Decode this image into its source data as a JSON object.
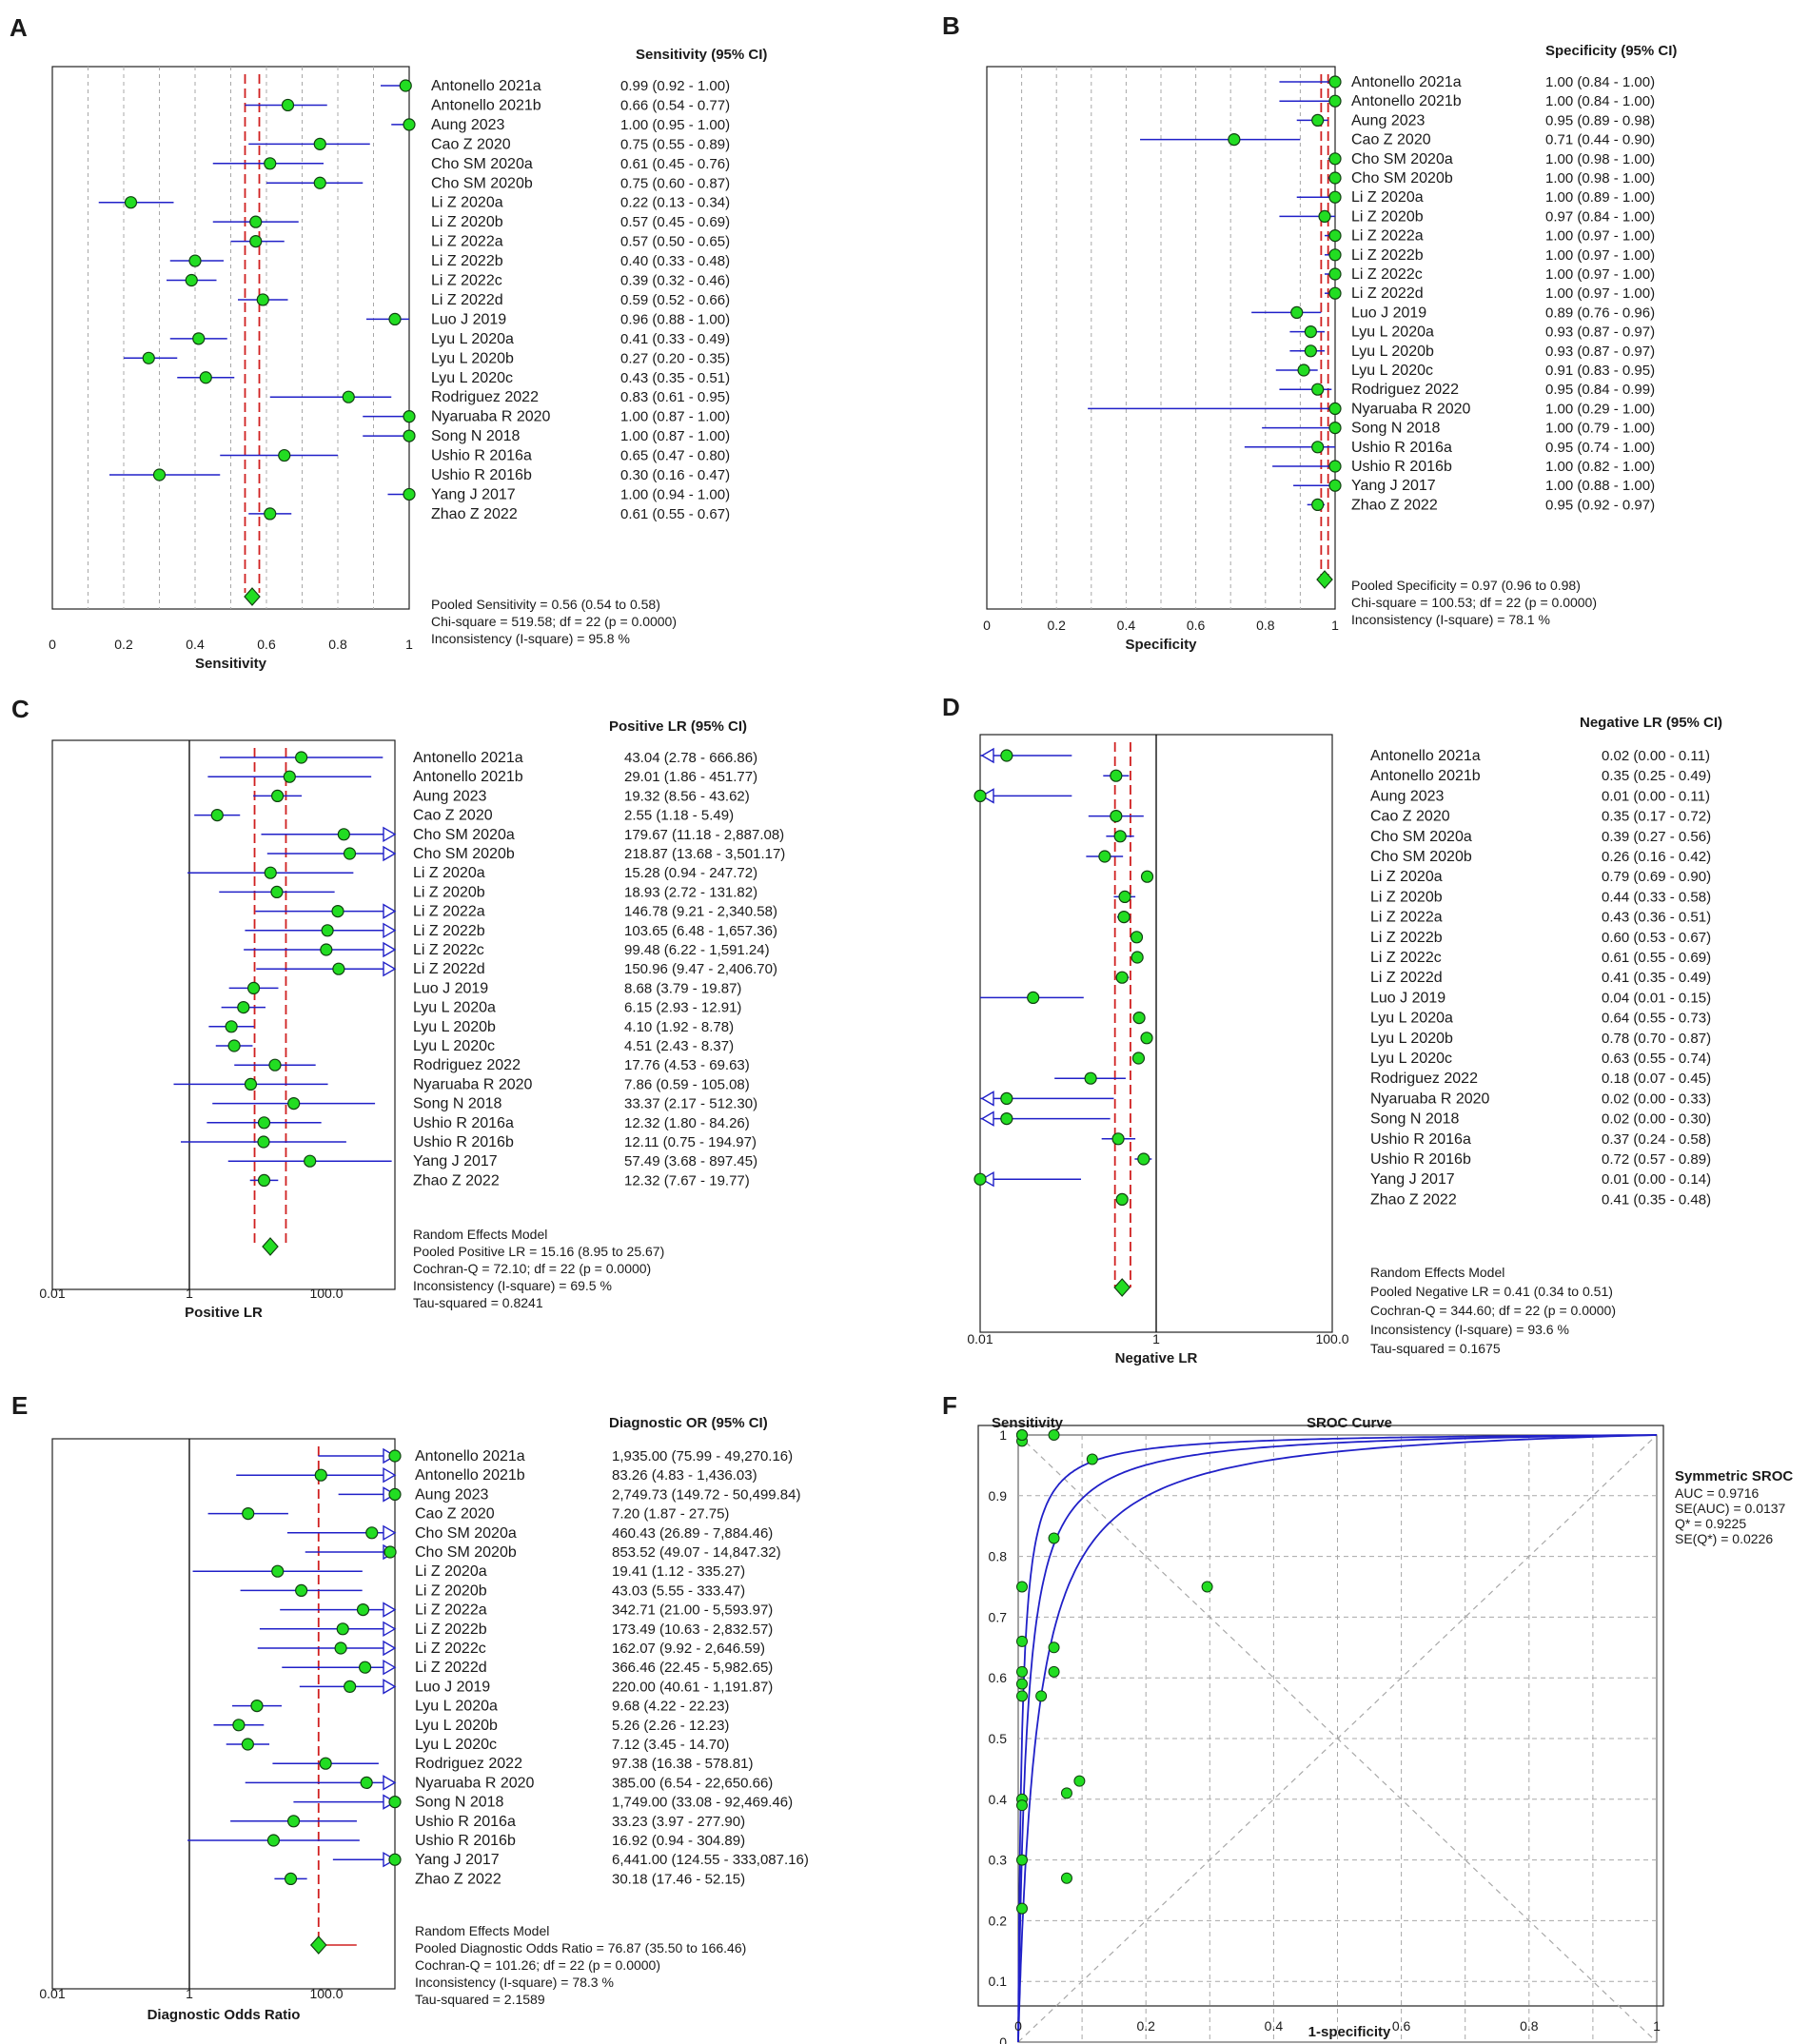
{
  "studies": [
    "Antonello 2021a",
    "Antonello 2021b",
    "Aung 2023",
    "Cao Z 2020",
    "Cho SM 2020a",
    "Cho SM 2020b",
    "Li Z 2020a",
    "Li Z 2020b",
    "Li Z 2022a",
    "Li Z 2022b",
    "Li Z 2022c",
    "Li Z 2022d",
    "Luo J 2019",
    "Lyu L 2020a",
    "Lyu L 2020b",
    "Lyu L 2020c",
    "Rodriguez 2022",
    "Nyaruaba R 2020",
    "Song N 2018",
    "Ushio R 2016a",
    "Ushio R 2016b",
    "Yang J 2017",
    "Zhao Z 2022"
  ],
  "chart_data": [
    {
      "panel": "A",
      "type": "forest",
      "header": "Sensitivity (95% CI)",
      "xlabel": "Sensitivity",
      "ticks": [
        "0",
        "0.2",
        "0.4",
        "0.6",
        "0.8",
        "1"
      ],
      "values": [
        0.99,
        0.66,
        1.0,
        0.75,
        0.61,
        0.75,
        0.22,
        0.57,
        0.57,
        0.4,
        0.39,
        0.59,
        0.96,
        0.41,
        0.27,
        0.43,
        0.83,
        1.0,
        1.0,
        0.65,
        0.3,
        1.0,
        0.61
      ],
      "lower": [
        0.92,
        0.54,
        0.95,
        0.55,
        0.45,
        0.6,
        0.13,
        0.45,
        0.5,
        0.33,
        0.32,
        0.52,
        0.88,
        0.33,
        0.2,
        0.35,
        0.61,
        0.87,
        0.87,
        0.47,
        0.16,
        0.94,
        0.55
      ],
      "upper": [
        1.0,
        0.77,
        1.0,
        0.89,
        0.76,
        0.87,
        0.34,
        0.69,
        0.65,
        0.48,
        0.46,
        0.66,
        1.0,
        0.49,
        0.35,
        0.51,
        0.95,
        1.0,
        1.0,
        0.8,
        0.47,
        1.0,
        0.67
      ],
      "labels": [
        "0.99  (0.92 - 1.00)",
        "0.66  (0.54 - 0.77)",
        "1.00  (0.95 - 1.00)",
        "0.75  (0.55 - 0.89)",
        "0.61  (0.45 - 0.76)",
        "0.75  (0.60 - 0.87)",
        "0.22  (0.13 - 0.34)",
        "0.57  (0.45 - 0.69)",
        "0.57  (0.50 - 0.65)",
        "0.40  (0.33 - 0.48)",
        "0.39  (0.32 - 0.46)",
        "0.59  (0.52 - 0.66)",
        "0.96  (0.88 - 1.00)",
        "0.41  (0.33 - 0.49)",
        "0.27  (0.20 - 0.35)",
        "0.43  (0.35 - 0.51)",
        "0.83  (0.61 - 0.95)",
        "1.00  (0.87 - 1.00)",
        "1.00  (0.87 - 1.00)",
        "0.65  (0.47 - 0.80)",
        "0.30  (0.16 - 0.47)",
        "1.00  (0.94 - 1.00)",
        "0.61  (0.55 - 0.67)"
      ],
      "pooled": {
        "value": 0.56,
        "lower": 0.54,
        "upper": 0.58
      },
      "summary": [
        "Pooled Sensitivity = 0.56 (0.54 to 0.58)",
        "Chi-square = 519.58; df = 22 (p = 0.0000)",
        "Inconsistency (I-square) = 95.8 %"
      ]
    },
    {
      "panel": "B",
      "type": "forest",
      "header": "Specificity (95% CI)",
      "xlabel": "Specificity",
      "ticks": [
        "0",
        "0.2",
        "0.4",
        "0.6",
        "0.8",
        "1"
      ],
      "values": [
        1.0,
        1.0,
        0.95,
        0.71,
        1.0,
        1.0,
        1.0,
        0.97,
        1.0,
        1.0,
        1.0,
        1.0,
        0.89,
        0.93,
        0.93,
        0.91,
        0.95,
        1.0,
        1.0,
        0.95,
        1.0,
        1.0,
        0.95
      ],
      "lower": [
        0.84,
        0.84,
        0.89,
        0.44,
        0.98,
        0.98,
        0.89,
        0.84,
        0.97,
        0.97,
        0.97,
        0.97,
        0.76,
        0.87,
        0.87,
        0.83,
        0.84,
        0.29,
        0.79,
        0.74,
        0.82,
        0.88,
        0.92
      ],
      "upper": [
        1.0,
        1.0,
        0.98,
        0.9,
        1.0,
        1.0,
        1.0,
        1.0,
        1.0,
        1.0,
        1.0,
        1.0,
        0.96,
        0.97,
        0.97,
        0.95,
        0.99,
        1.0,
        1.0,
        1.0,
        1.0,
        1.0,
        0.97
      ],
      "labels": [
        "1.00  (0.84 - 1.00)",
        "1.00  (0.84 - 1.00)",
        "0.95  (0.89 - 0.98)",
        "0.71  (0.44 - 0.90)",
        "1.00  (0.98 - 1.00)",
        "1.00  (0.98 - 1.00)",
        "1.00  (0.89 - 1.00)",
        "0.97  (0.84 - 1.00)",
        "1.00  (0.97 - 1.00)",
        "1.00  (0.97 - 1.00)",
        "1.00  (0.97 - 1.00)",
        "1.00  (0.97 - 1.00)",
        "0.89  (0.76 - 0.96)",
        "0.93  (0.87 - 0.97)",
        "0.93  (0.87 - 0.97)",
        "0.91  (0.83 - 0.95)",
        "0.95  (0.84 - 0.99)",
        "1.00  (0.29 - 1.00)",
        "1.00  (0.79 - 1.00)",
        "0.95  (0.74 - 1.00)",
        "1.00  (0.82 - 1.00)",
        "1.00  (0.88 - 1.00)",
        "0.95  (0.92 - 0.97)"
      ],
      "pooled": {
        "value": 0.97,
        "lower": 0.96,
        "upper": 0.98
      },
      "summary": [
        "Pooled Specificity = 0.97 (0.96 to 0.98)",
        "Chi-square = 100.53; df = 22 (p = 0.0000)",
        "Inconsistency (I-square) = 78.1 %"
      ]
    },
    {
      "panel": "C",
      "type": "forest",
      "header": "Positive LR (95% CI)",
      "xlabel": "Positive LR",
      "ticks": [
        "0.01",
        "1",
        "100.0"
      ],
      "values": [
        43.04,
        29.01,
        19.32,
        2.55,
        179.67,
        218.87,
        15.28,
        18.93,
        146.78,
        103.65,
        99.48,
        150.96,
        8.68,
        6.15,
        4.1,
        4.51,
        17.76,
        7.86,
        33.37,
        12.32,
        12.11,
        57.49,
        12.32
      ],
      "lower": [
        2.78,
        1.86,
        8.56,
        1.18,
        11.18,
        13.68,
        0.94,
        2.72,
        9.21,
        6.48,
        6.22,
        9.47,
        3.79,
        2.93,
        1.92,
        2.43,
        4.53,
        0.59,
        2.17,
        1.8,
        0.75,
        3.68,
        7.67
      ],
      "upper": [
        666.86,
        451.77,
        43.62,
        5.49,
        2887.08,
        3501.17,
        247.72,
        131.82,
        2340.58,
        1657.36,
        1591.24,
        2406.7,
        19.87,
        12.91,
        8.78,
        8.37,
        69.63,
        105.08,
        512.3,
        84.26,
        194.97,
        897.45,
        19.77
      ],
      "labels": [
        "43.04  (2.78 - 666.86)",
        "29.01  (1.86 - 451.77)",
        "19.32  (8.56 - 43.62)",
        "2.55  (1.18 - 5.49)",
        "179.67  (11.18 - 2,887.08)",
        "218.87  (13.68 - 3,501.17)",
        "15.28  (0.94 - 247.72)",
        "18.93  (2.72 - 131.82)",
        "146.78  (9.21 - 2,340.58)",
        "103.65  (6.48 - 1,657.36)",
        "99.48  (6.22 - 1,591.24)",
        "150.96  (9.47 - 2,406.70)",
        "8.68  (3.79 - 19.87)",
        "6.15  (2.93 - 12.91)",
        "4.10  (1.92 - 8.78)",
        "4.51  (2.43 - 8.37)",
        "17.76  (4.53 - 69.63)",
        "7.86  (0.59 - 105.08)",
        "33.37  (2.17 - 512.30)",
        "12.32  (1.80 - 84.26)",
        "12.11  (0.75 - 194.97)",
        "57.49  (3.68 - 897.45)",
        "12.32  (7.67 - 19.77)"
      ],
      "pooled": {
        "value": 15.16,
        "lower": 8.95,
        "upper": 25.67
      },
      "summary": [
        "Random Effects Model",
        "Pooled Positive LR = 15.16 (8.95 to 25.67)",
        "Cochran-Q = 72.10; df =  22 (p = 0.0000)",
        "Inconsistency (I-square) = 69.5 %",
        "Tau-squared = 0.8241"
      ]
    },
    {
      "panel": "D",
      "type": "forest",
      "header": "Negative LR (95% CI)",
      "xlabel": "Negative LR",
      "ticks": [
        "0.01",
        "1",
        "100.0"
      ],
      "values": [
        0.02,
        0.35,
        0.01,
        0.35,
        0.39,
        0.26,
        0.79,
        0.44,
        0.43,
        0.6,
        0.61,
        0.41,
        0.04,
        0.64,
        0.78,
        0.63,
        0.18,
        0.02,
        0.02,
        0.37,
        0.72,
        0.01,
        0.41
      ],
      "lower": [
        0.0,
        0.25,
        0.0,
        0.17,
        0.27,
        0.16,
        0.69,
        0.33,
        0.36,
        0.53,
        0.55,
        0.35,
        0.01,
        0.55,
        0.7,
        0.55,
        0.07,
        0.0,
        0.0,
        0.24,
        0.57,
        0.0,
        0.35
      ],
      "upper": [
        0.11,
        0.49,
        0.11,
        0.72,
        0.56,
        0.42,
        0.9,
        0.58,
        0.51,
        0.67,
        0.69,
        0.49,
        0.15,
        0.73,
        0.87,
        0.74,
        0.45,
        0.33,
        0.3,
        0.58,
        0.89,
        0.14,
        0.48
      ],
      "labels": [
        "0.02  (0.00 - 0.11)",
        "0.35  (0.25 - 0.49)",
        "0.01  (0.00 - 0.11)",
        "0.35  (0.17 - 0.72)",
        "0.39  (0.27 - 0.56)",
        "0.26  (0.16 - 0.42)",
        "0.79  (0.69 - 0.90)",
        "0.44  (0.33 - 0.58)",
        "0.43  (0.36 - 0.51)",
        "0.60  (0.53 - 0.67)",
        "0.61  (0.55 - 0.69)",
        "0.41  (0.35 - 0.49)",
        "0.04  (0.01 - 0.15)",
        "0.64  (0.55 - 0.73)",
        "0.78  (0.70 - 0.87)",
        "0.63  (0.55 - 0.74)",
        "0.18  (0.07 - 0.45)",
        "0.02  (0.00 - 0.33)",
        "0.02  (0.00 - 0.30)",
        "0.37  (0.24 - 0.58)",
        "0.72  (0.57 - 0.89)",
        "0.01  (0.00 - 0.14)",
        "0.41  (0.35 - 0.48)"
      ],
      "pooled": {
        "value": 0.41,
        "lower": 0.34,
        "upper": 0.51
      },
      "summary": [
        "Random Effects Model",
        "Pooled Negative LR = 0.41 (0.34 to 0.51)",
        "Cochran-Q = 344.60; df =  22 (p = 0.0000)",
        "Inconsistency (I-square) = 93.6 %",
        "Tau-squared = 0.1675"
      ]
    },
    {
      "panel": "E",
      "type": "forest",
      "header": "Diagnostic OR (95% CI)",
      "xlabel": "Diagnostic Odds Ratio",
      "ticks": [
        "0.01",
        "1",
        "100.0"
      ],
      "values": [
        1935.0,
        83.26,
        2749.73,
        7.2,
        460.43,
        853.52,
        19.41,
        43.03,
        342.71,
        173.49,
        162.07,
        366.46,
        220.0,
        9.68,
        5.26,
        7.12,
        97.38,
        385.0,
        1749.0,
        33.23,
        16.92,
        6441.0,
        30.18
      ],
      "lower": [
        75.99,
        4.83,
        149.72,
        1.87,
        26.89,
        49.07,
        1.12,
        5.55,
        21.0,
        10.63,
        9.92,
        22.45,
        40.61,
        4.22,
        2.26,
        3.45,
        16.38,
        6.54,
        33.08,
        3.97,
        0.94,
        124.55,
        17.46
      ],
      "upper": [
        49270.16,
        1436.03,
        50499.84,
        27.75,
        7884.46,
        14847.32,
        335.27,
        333.47,
        5593.97,
        2832.57,
        2646.59,
        5982.65,
        1191.87,
        22.23,
        12.23,
        14.7,
        578.81,
        22650.66,
        92469.46,
        277.9,
        304.89,
        333087.16,
        52.15
      ],
      "labels": [
        "1,935.00  (75.99 - 49,270.16)",
        "83.26  (4.83 - 1,436.03)",
        "2,749.73  (149.72 - 50,499.84)",
        "7.20  (1.87 - 27.75)",
        "460.43  (26.89 - 7,884.46)",
        "853.52  (49.07 - 14,847.32)",
        "19.41  (1.12 - 335.27)",
        "43.03  (5.55 - 333.47)",
        "342.71  (21.00 - 5,593.97)",
        "173.49  (10.63 - 2,832.57)",
        "162.07  (9.92 - 2,646.59)",
        "366.46  (22.45 - 5,982.65)",
        "220.00  (40.61 - 1,191.87)",
        "9.68  (4.22 - 22.23)",
        "5.26  (2.26 - 12.23)",
        "7.12  (3.45 - 14.70)",
        "97.38  (16.38 - 578.81)",
        "385.00  (6.54 - 22,650.66)",
        "1,749.00  (33.08 - 92,469.46)",
        "33.23  (3.97 - 277.90)",
        "16.92  (0.94 - 304.89)",
        "6,441.00  (124.55 - 333,087.16)",
        "30.18  (17.46 - 52.15)"
      ],
      "pooled": {
        "value": 76.87,
        "lower": 35.5,
        "upper": 166.46
      },
      "summary": [
        "Random Effects Model",
        "Pooled Diagnostic Odds Ratio = 76.87 (35.50 to 166.46)",
        "Cochran-Q = 101.26; df =  22 (p = 0.0000)",
        "Inconsistency (I-square) = 78.3 %",
        "Tau-squared = 2.1589"
      ]
    },
    {
      "panel": "F",
      "type": "scatter",
      "title": "SROC Curve",
      "xlabel": "1-specificity",
      "ylabel": "Sensitivity",
      "xticks": [
        "0",
        "0.2",
        "0.4",
        "0.6",
        "0.8",
        "1"
      ],
      "yticks": [
        "0",
        "0.1",
        "0.2",
        "0.3",
        "0.4",
        "0.5",
        "0.6",
        "0.7",
        "0.8",
        "0.9",
        "1"
      ],
      "legend_title": "Symmetric SROC",
      "legend": [
        "AUC = 0.9716",
        "SE(AUC) = 0.0137",
        "Q* = 0.9225",
        "SE(Q*) = 0.0226"
      ],
      "dor": 76.87,
      "dor_lower": 35.5,
      "dor_upper": 166.46,
      "points": [
        [
          0.0,
          0.99
        ],
        [
          0.0,
          0.66
        ],
        [
          0.05,
          1.0
        ],
        [
          0.29,
          0.75
        ],
        [
          0.0,
          0.61
        ],
        [
          0.0,
          0.75
        ],
        [
          0.0,
          0.22
        ],
        [
          0.03,
          0.57
        ],
        [
          0.0,
          0.57
        ],
        [
          0.0,
          0.4
        ],
        [
          0.0,
          0.39
        ],
        [
          0.0,
          0.59
        ],
        [
          0.11,
          0.96
        ],
        [
          0.07,
          0.41
        ],
        [
          0.07,
          0.27
        ],
        [
          0.09,
          0.43
        ],
        [
          0.05,
          0.83
        ],
        [
          0.0,
          1.0
        ],
        [
          0.0,
          1.0
        ],
        [
          0.05,
          0.65
        ],
        [
          0.0,
          0.3
        ],
        [
          0.0,
          1.0
        ],
        [
          0.05,
          0.61
        ]
      ]
    }
  ],
  "panel_labels": [
    "A",
    "B",
    "C",
    "D",
    "E",
    "F"
  ]
}
